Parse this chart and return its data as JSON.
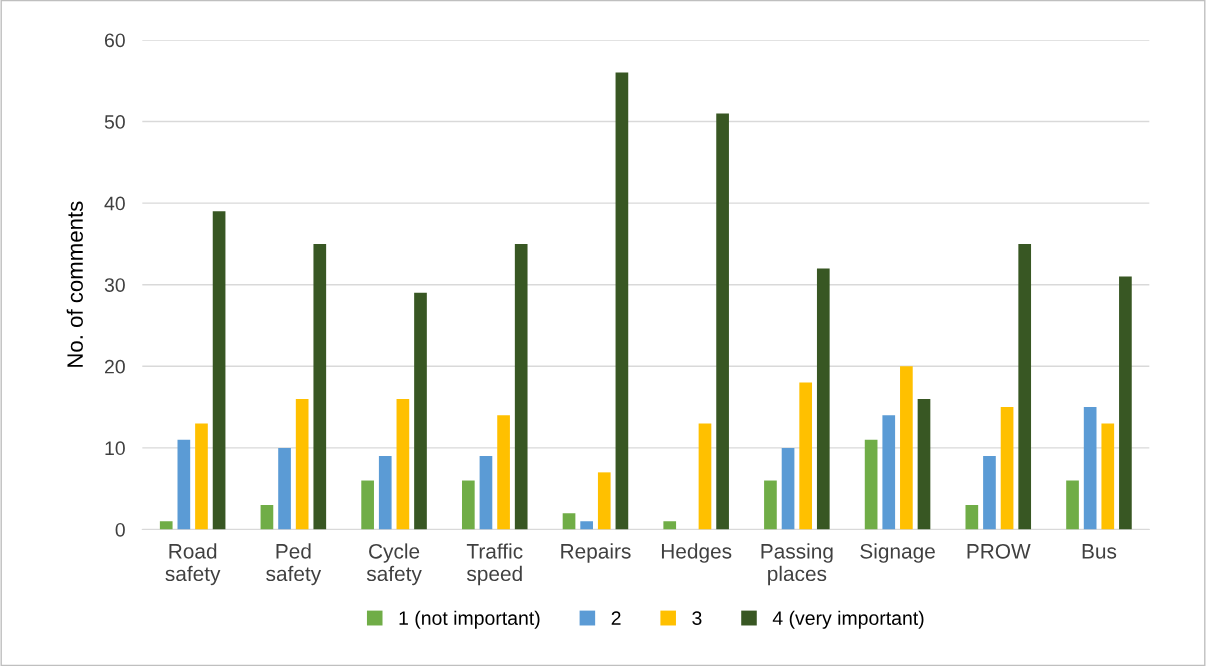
{
  "chart_data": {
    "type": "bar",
    "ylabel": "No. of comments",
    "categories": [
      "Road\nsafety",
      "Ped\nsafety",
      "Cycle\nsafety",
      "Traffic\nspeed",
      "Repairs",
      "Hedges",
      "Passing\nplaces",
      "Signage",
      "PROW",
      "Bus"
    ],
    "series": [
      {
        "name": "1 (not important)",
        "color": "#70ad47",
        "values": [
          1,
          3,
          6,
          6,
          2,
          1,
          6,
          11,
          3,
          6
        ]
      },
      {
        "name": "2",
        "color": "#5b9bd5",
        "values": [
          11,
          10,
          9,
          9,
          1,
          0,
          10,
          14,
          9,
          15
        ]
      },
      {
        "name": "3",
        "color": "#ffc000",
        "values": [
          13,
          16,
          16,
          14,
          7,
          13,
          18,
          20,
          15,
          13
        ]
      },
      {
        "name": "4 (very important)",
        "color": "#385723",
        "values": [
          39,
          35,
          29,
          35,
          56,
          51,
          32,
          16,
          35,
          31
        ]
      }
    ],
    "ylim": [
      0,
      60
    ],
    "yticks": [
      0,
      10,
      20,
      30,
      40,
      50,
      60
    ],
    "grid": "y",
    "legend": "bottom"
  }
}
